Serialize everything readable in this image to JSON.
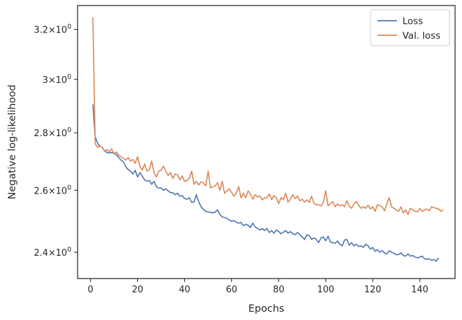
{
  "chart_data": {
    "type": "line",
    "title": "",
    "xlabel": "Epochs",
    "ylabel": "Negative log-likelihood",
    "xlim": [
      -5.5,
      155
    ],
    "ylim": [
      2.32,
      3.3
    ],
    "yscale": "log",
    "grid": false,
    "legend_position": "top-right",
    "x_ticks": [
      {
        "value": 0,
        "label": "0"
      },
      {
        "value": 20,
        "label": "20"
      },
      {
        "value": 40,
        "label": "40"
      },
      {
        "value": 60,
        "label": "60"
      },
      {
        "value": 80,
        "label": "80"
      },
      {
        "value": 100,
        "label": "100"
      },
      {
        "value": 120,
        "label": "120"
      },
      {
        "value": 140,
        "label": "140"
      }
    ],
    "y_ticks": [
      {
        "value": 2.4,
        "mantissa": "2.4",
        "sup": "0"
      },
      {
        "value": 2.6,
        "mantissa": "2.6",
        "sup": "0"
      },
      {
        "value": 2.8,
        "mantissa": "2.8",
        "sup": "0"
      },
      {
        "value": 3.0,
        "mantissa": "3",
        "sup": "0"
      },
      {
        "value": 3.2,
        "mantissa": "3.2",
        "sup": "0"
      }
    ],
    "series": [
      {
        "name": "Loss",
        "color": "#4c72b0",
        "x_start": 1,
        "values": [
          2.905,
          2.785,
          2.762,
          2.752,
          2.748,
          2.735,
          2.73,
          2.728,
          2.73,
          2.726,
          2.722,
          2.712,
          2.703,
          2.697,
          2.68,
          2.67,
          2.665,
          2.655,
          2.668,
          2.645,
          2.66,
          2.648,
          2.635,
          2.63,
          2.633,
          2.62,
          2.63,
          2.612,
          2.607,
          2.608,
          2.6,
          2.605,
          2.598,
          2.592,
          2.592,
          2.585,
          2.59,
          2.58,
          2.582,
          2.572,
          2.57,
          2.575,
          2.56,
          2.561,
          2.585,
          2.562,
          2.545,
          2.537,
          2.53,
          2.528,
          2.527,
          2.525,
          2.528,
          2.535,
          2.52,
          2.512,
          2.51,
          2.508,
          2.502,
          2.498,
          2.5,
          2.495,
          2.492,
          2.494,
          2.484,
          2.488,
          2.485,
          2.478,
          2.492,
          2.48,
          2.475,
          2.47,
          2.475,
          2.468,
          2.475,
          2.462,
          2.468,
          2.46,
          2.47,
          2.465,
          2.458,
          2.463,
          2.468,
          2.46,
          2.465,
          2.458,
          2.455,
          2.462,
          2.455,
          2.448,
          2.44,
          2.455,
          2.452,
          2.44,
          2.445,
          2.44,
          2.43,
          2.445,
          2.448,
          2.436,
          2.45,
          2.432,
          2.43,
          2.428,
          2.435,
          2.425,
          2.42,
          2.438,
          2.44,
          2.422,
          2.43,
          2.42,
          2.425,
          2.418,
          2.42,
          2.415,
          2.425,
          2.42,
          2.41,
          2.415,
          2.403,
          2.408,
          2.4,
          2.405,
          2.398,
          2.395,
          2.405,
          2.4,
          2.397,
          2.392,
          2.393,
          2.398,
          2.39,
          2.388,
          2.395,
          2.388,
          2.39,
          2.385,
          2.383,
          2.385,
          2.388,
          2.38,
          2.378,
          2.38,
          2.375,
          2.378,
          2.372,
          2.383
        ]
      },
      {
        "name": "Val. loss",
        "color": "#dd8452",
        "x_start": 1,
        "values": [
          3.25,
          2.76,
          2.748,
          2.752,
          2.748,
          2.735,
          2.74,
          2.733,
          2.742,
          2.725,
          2.732,
          2.72,
          2.715,
          2.71,
          2.703,
          2.712,
          2.7,
          2.705,
          2.692,
          2.715,
          2.682,
          2.668,
          2.69,
          2.665,
          2.67,
          2.7,
          2.66,
          2.645,
          2.665,
          2.668,
          2.682,
          2.665,
          2.65,
          2.66,
          2.64,
          2.655,
          2.652,
          2.635,
          2.648,
          2.63,
          2.633,
          2.64,
          2.665,
          2.62,
          2.63,
          2.618,
          2.628,
          2.625,
          2.615,
          2.665,
          2.608,
          2.612,
          2.615,
          2.625,
          2.6,
          2.63,
          2.59,
          2.598,
          2.605,
          2.592,
          2.58,
          2.592,
          2.612,
          2.575,
          2.59,
          2.575,
          2.598,
          2.588,
          2.57,
          2.585,
          2.578,
          2.58,
          2.568,
          2.575,
          2.575,
          2.588,
          2.568,
          2.582,
          2.575,
          2.555,
          2.575,
          2.568,
          2.59,
          2.56,
          2.57,
          2.585,
          2.572,
          2.58,
          2.565,
          2.57,
          2.56,
          2.568,
          2.56,
          2.58,
          2.556,
          2.552,
          2.552,
          2.548,
          2.56,
          2.598,
          2.548,
          2.555,
          2.562,
          2.545,
          2.555,
          2.548,
          2.552,
          2.545,
          2.565,
          2.548,
          2.54,
          2.555,
          2.562,
          2.55,
          2.54,
          2.545,
          2.54,
          2.55,
          2.538,
          2.545,
          2.53,
          2.552,
          2.548,
          2.545,
          2.532,
          2.555,
          2.575,
          2.545,
          2.54,
          2.535,
          2.53,
          2.545,
          2.525,
          2.535,
          2.52,
          2.54,
          2.535,
          2.53,
          2.528,
          2.54,
          2.53,
          2.535,
          2.538,
          2.532,
          2.545,
          2.542,
          2.54,
          2.538,
          2.53,
          2.536
        ]
      }
    ]
  }
}
